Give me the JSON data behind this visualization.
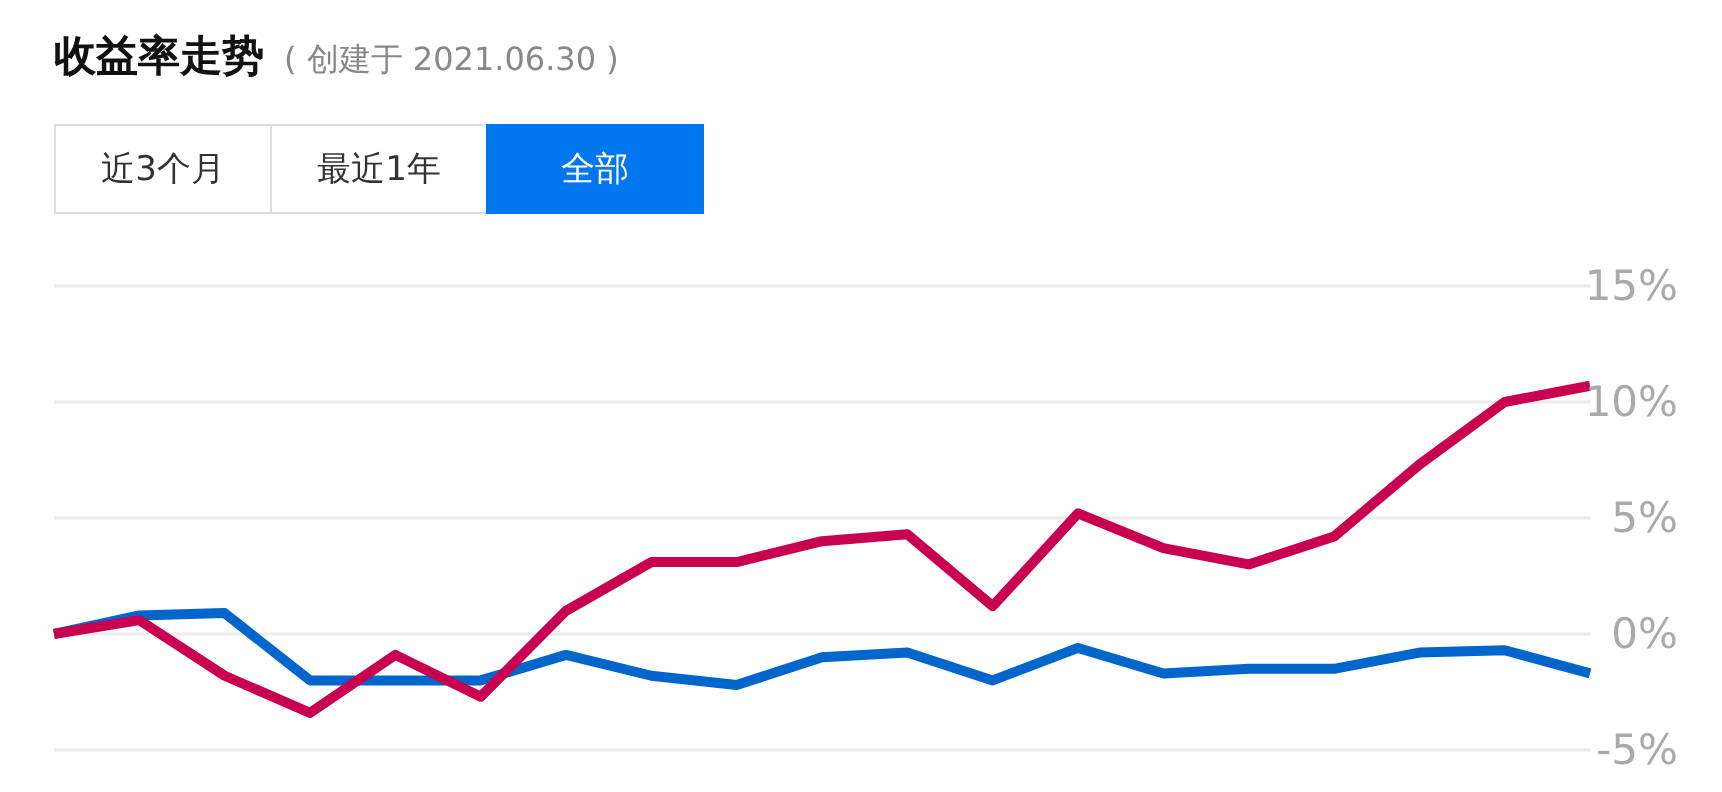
{
  "chart_data": {
    "type": "line",
    "title": "收益率走势",
    "subtitle": "( 创建于 2021.06.30 )",
    "annotations": [
      "近3个月",
      "最近1年",
      "全部"
    ],
    "categories": [
      null,
      null,
      null,
      null,
      null,
      null,
      null,
      null,
      null,
      null,
      null,
      null,
      null,
      null,
      null,
      null,
      null,
      null,
      null
    ],
    "series": [
      {
        "color": "#0066cc",
        "values": [
          0,
          0.8,
          0.9,
          -2.0,
          -2.0,
          -2.0,
          -0.9,
          -1.8,
          -2.2,
          -1.0,
          -0.8,
          -2.0,
          -0.6,
          -1.7,
          -1.5,
          -1.5,
          -0.8,
          -0.7,
          -1.7
        ]
      },
      {
        "color": "#c8004f",
        "values": [
          0,
          0.6,
          -1.8,
          -3.4,
          -0.9,
          -2.7,
          1.0,
          3.1,
          3.1,
          4.0,
          4.3,
          1.2,
          5.2,
          3.7,
          3.0,
          4.2,
          7.3,
          10.0,
          10.7
        ]
      }
    ],
    "ylim": [
      -5,
      15
    ],
    "yticks": [
      {
        "value": -5,
        "label": "-5%"
      },
      {
        "value": 0,
        "label": "0%"
      },
      {
        "value": 5,
        "label": "5%"
      },
      {
        "value": 10,
        "label": "10%"
      },
      {
        "value": 15,
        "label": "15%"
      }
    ],
    "grid": "y",
    "marker": "none",
    "line_style": "solid",
    "tick_labels": "y"
  }
}
